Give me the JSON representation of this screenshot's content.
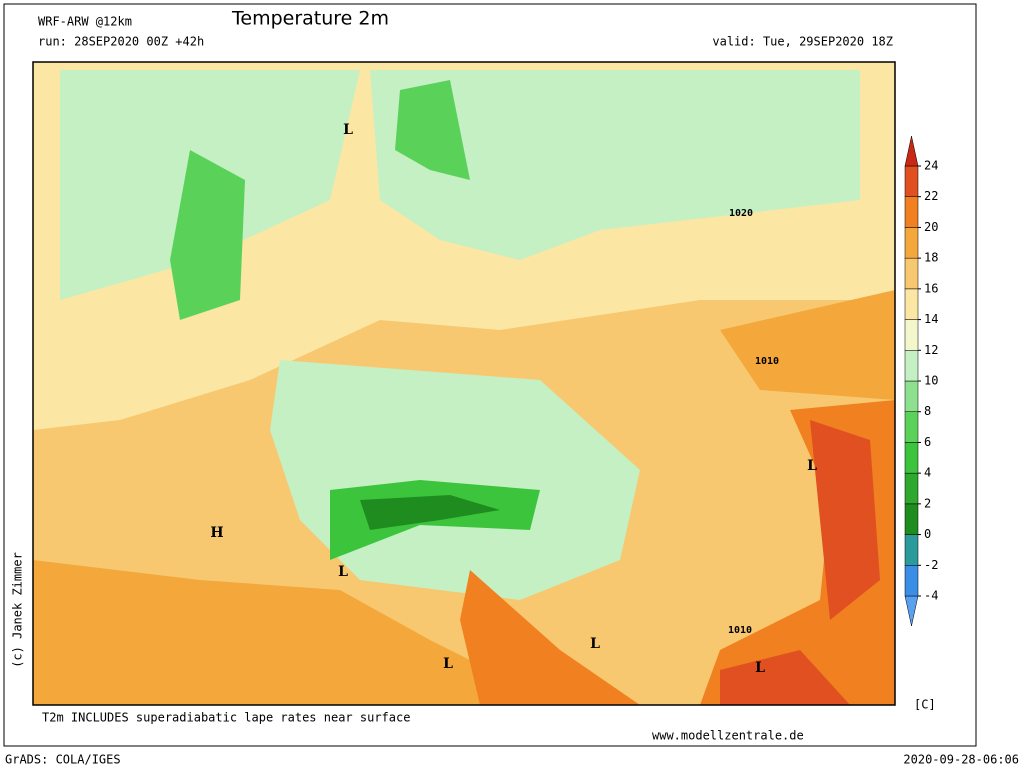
{
  "header": {
    "model": "WRF-ARW @12km",
    "title": "Temperature 2m",
    "run": "run: 28SEP2020 00Z +42h",
    "valid": "valid: Tue, 29SEP2020 18Z"
  },
  "colorbar": {
    "levels": [
      -4,
      -2,
      0,
      2,
      4,
      6,
      8,
      10,
      12,
      14,
      16,
      18,
      20,
      22,
      24
    ],
    "colors": [
      "#5aa0f0",
      "#3a8ee6",
      "#2a9a9a",
      "#1e8c1e",
      "#2fa82f",
      "#3cc43c",
      "#5ad25a",
      "#8de08d",
      "#c4f0c4",
      "#f4f7cc",
      "#fbe6a4",
      "#f8c870",
      "#f4a83c",
      "#f08020",
      "#e05020",
      "#c82814"
    ],
    "unit": "[C]"
  },
  "map": {
    "labels": [
      "L",
      "H",
      "L",
      "L",
      "L",
      "L",
      "L",
      "1020",
      "1010",
      "1010"
    ]
  },
  "footer": {
    "note": "T2m INCLUDES superadiabatic lape rates near surface",
    "site": "www.modellzentrale.de",
    "grads": "GrADS: COLA/IGES",
    "timestamp": "2020-09-28-06:06",
    "credit": "(c) Janek Zimmer"
  }
}
